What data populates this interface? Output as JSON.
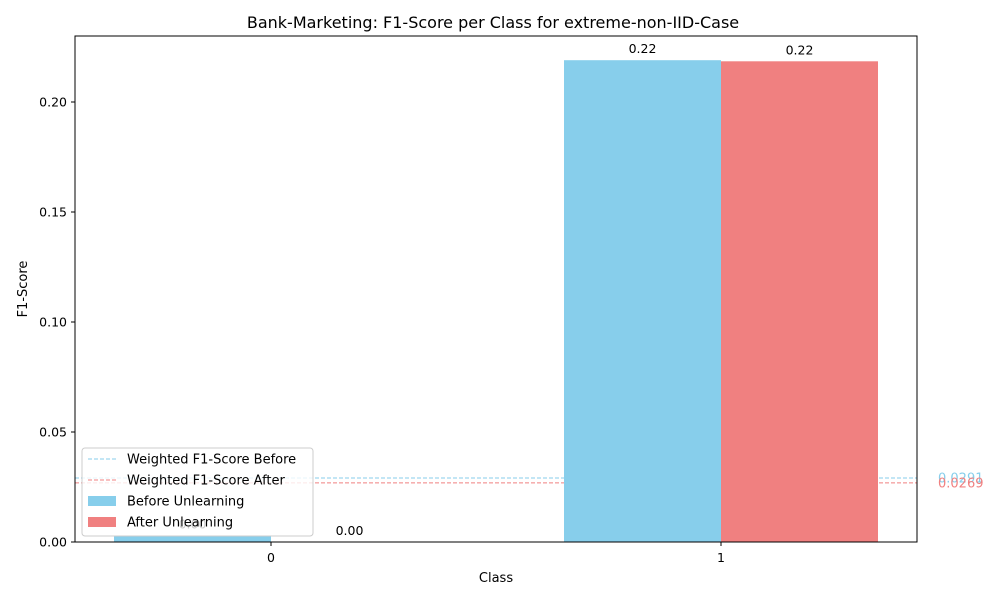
{
  "chart_data": {
    "type": "bar",
    "title": "Bank-Marketing: F1-Score per Class for extreme-non-IID-Case",
    "xlabel": "Class",
    "ylabel": "F1-Score",
    "categories": [
      "0",
      "1"
    ],
    "ylim": [
      0,
      0.23
    ],
    "yticks": [
      "0.00",
      "0.05",
      "0.10",
      "0.15",
      "0.20"
    ],
    "series": [
      {
        "name": "Before Unlearning",
        "color": "#87ceeb",
        "values": [
          0.0029,
          0.219
        ],
        "labels": [
          "0.00",
          "0.22"
        ]
      },
      {
        "name": "After Unlearning",
        "color": "#f08080",
        "values": [
          0.0,
          0.2185
        ],
        "labels": [
          "0.00",
          "0.22"
        ]
      }
    ],
    "reference_lines": [
      {
        "name": "Weighted F1-Score Before",
        "value": 0.0291,
        "label": "0.0291",
        "color": "#87ceeb"
      },
      {
        "name": "Weighted F1-Score After",
        "value": 0.0269,
        "label": "0.0269",
        "color": "#f08080"
      }
    ],
    "legend_position": "lower-left",
    "grid": false
  }
}
